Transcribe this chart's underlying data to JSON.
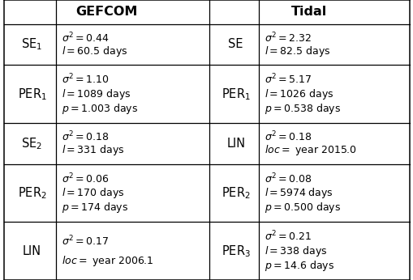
{
  "title_left": "GEFCOM",
  "title_right": "Tidal",
  "rows": [
    {
      "left_label": "SE$_1$",
      "left_content": [
        "$\\sigma^2 = 0.44$",
        "$l = 60.5$ days"
      ],
      "right_label": "SE",
      "right_content": [
        "$\\sigma^2 = 2.32$",
        "$l = 82.5$ days"
      ]
    },
    {
      "left_label": "PER$_1$",
      "left_content": [
        "$\\sigma^2 = 1.10$",
        "$l = 1089$ days",
        "$p = 1.003$ days"
      ],
      "right_label": "PER$_1$",
      "right_content": [
        "$\\sigma^2 = 5.17$",
        "$l = 1026$ days",
        "$p = 0.538$ days"
      ]
    },
    {
      "left_label": "SE$_2$",
      "left_content": [
        "$\\sigma^2 = 0.18$",
        "$l = 331$ days"
      ],
      "right_label": "LIN",
      "right_content": [
        "$\\sigma^2 = 0.18$",
        "$loc = $ year 2015.0"
      ]
    },
    {
      "left_label": "PER$_2$",
      "left_content": [
        "$\\sigma^2 = 0.06$",
        "$l = 170$ days",
        "$p = 174$ days"
      ],
      "right_label": "PER$_2$",
      "right_content": [
        "$\\sigma^2 = 0.08$",
        "$l = 5974$ days",
        "$p = 0.500$ days"
      ]
    },
    {
      "left_label": "LIN",
      "left_content": [
        "$\\sigma^2 = 0.17$",
        "$loc = $ year 2006.1"
      ],
      "right_label": "PER$_3$",
      "right_content": [
        "$\\sigma^2 = 0.21$",
        "$l = 338$ days",
        "$p = 14.6$ days"
      ]
    }
  ],
  "background_color": "#ffffff",
  "line_color": "#000000",
  "font_size": 9.0,
  "header_font_size": 11.5,
  "label_font_size": 10.5
}
